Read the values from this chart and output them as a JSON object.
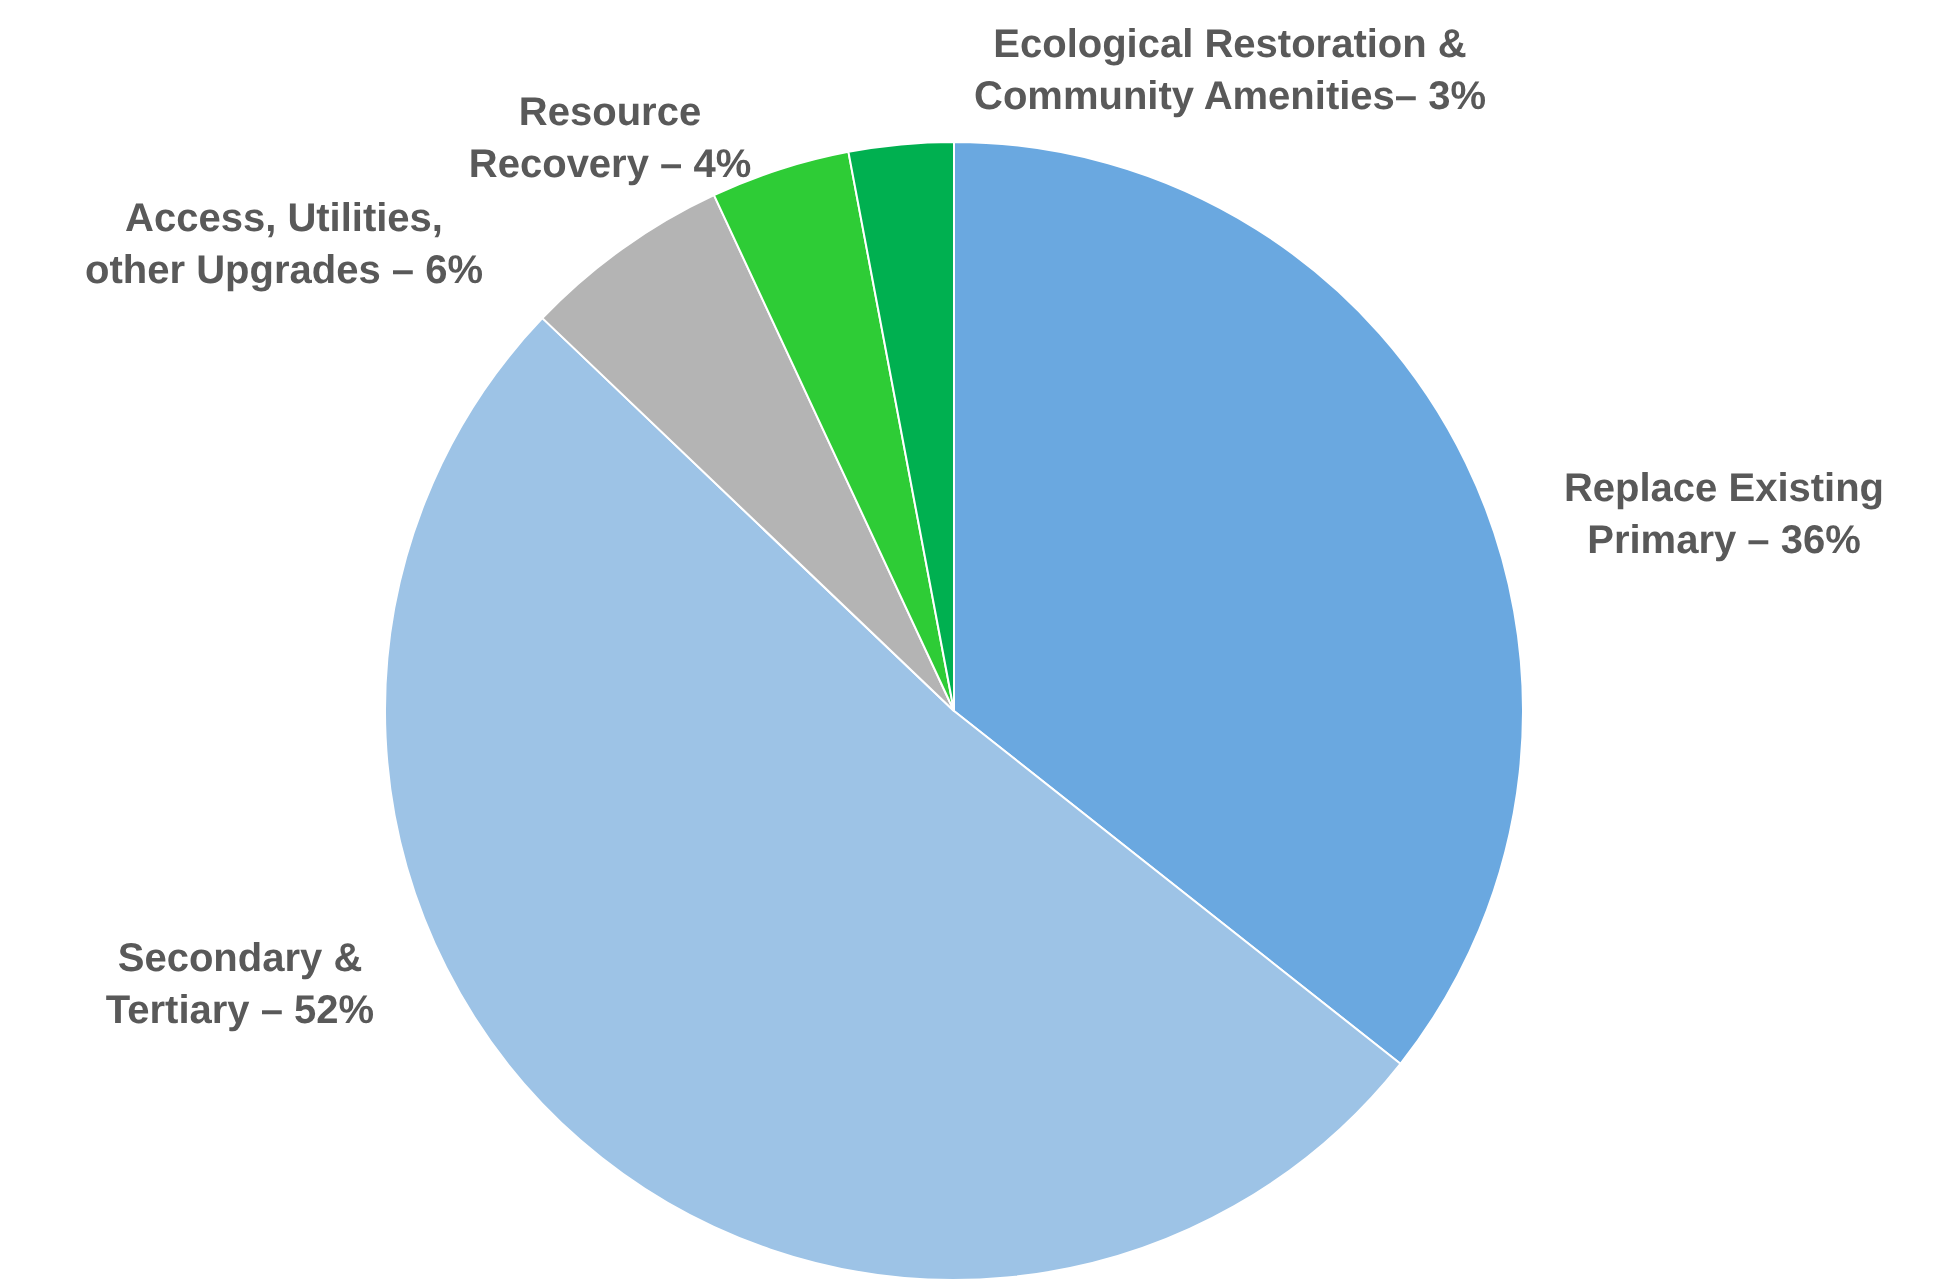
{
  "chart_data": {
    "type": "pie",
    "categories": [
      "Replace Existing Primary – 36%",
      "Secondary & Tertiary – 52%",
      "Access, Utilities, other Upgrades – 6%",
      "Resource Recovery – 4%",
      "Ecological Restoration & Community Amenities– 3%"
    ],
    "values": [
      36,
      52,
      6,
      4,
      3
    ],
    "colors": [
      "#6aa8e0",
      "#9dc3e6",
      "#b4b4b4",
      "#2ecc36",
      "#00b050"
    ],
    "legend": false
  }
}
